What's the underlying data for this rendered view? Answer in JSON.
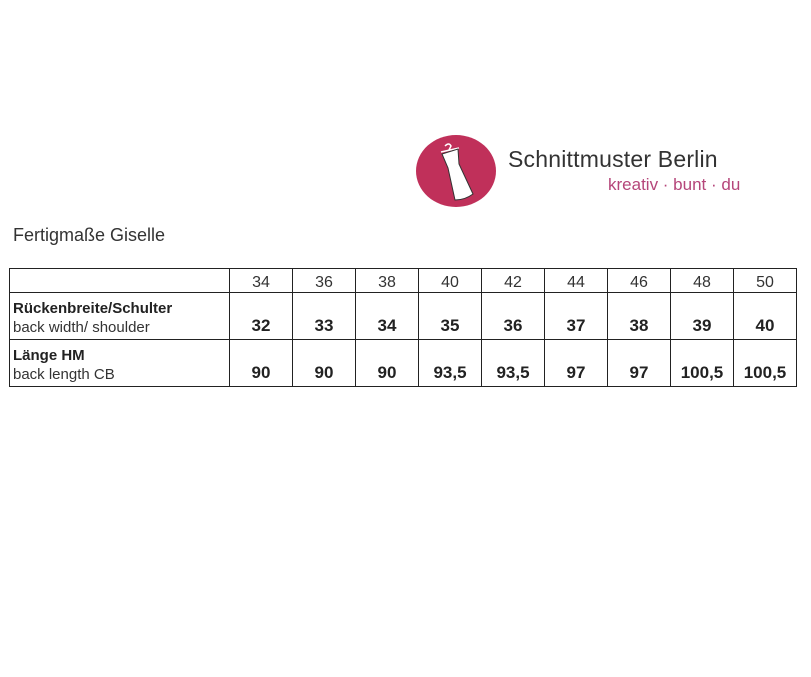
{
  "logo": {
    "brand": "Schnittmuster Berlin",
    "tagline": "kreativ · bunt · du",
    "color": "#c0305a",
    "icon": "dress-on-hanger-icon"
  },
  "title": "Fertigmaße Giselle",
  "table": {
    "sizes": [
      "34",
      "36",
      "38",
      "40",
      "42",
      "44",
      "46",
      "48",
      "50"
    ],
    "rows": [
      {
        "label_de": "Rückenbreite/Schulter",
        "label_en": "back width/ shoulder",
        "values": [
          "32",
          "33",
          "34",
          "35",
          "36",
          "37",
          "38",
          "39",
          "40"
        ]
      },
      {
        "label_de": "Länge HM",
        "label_en": "back length CB",
        "values": [
          "90",
          "90",
          "90",
          "93,5",
          "93,5",
          "97",
          "97",
          "100,5",
          "100,5"
        ]
      }
    ]
  }
}
